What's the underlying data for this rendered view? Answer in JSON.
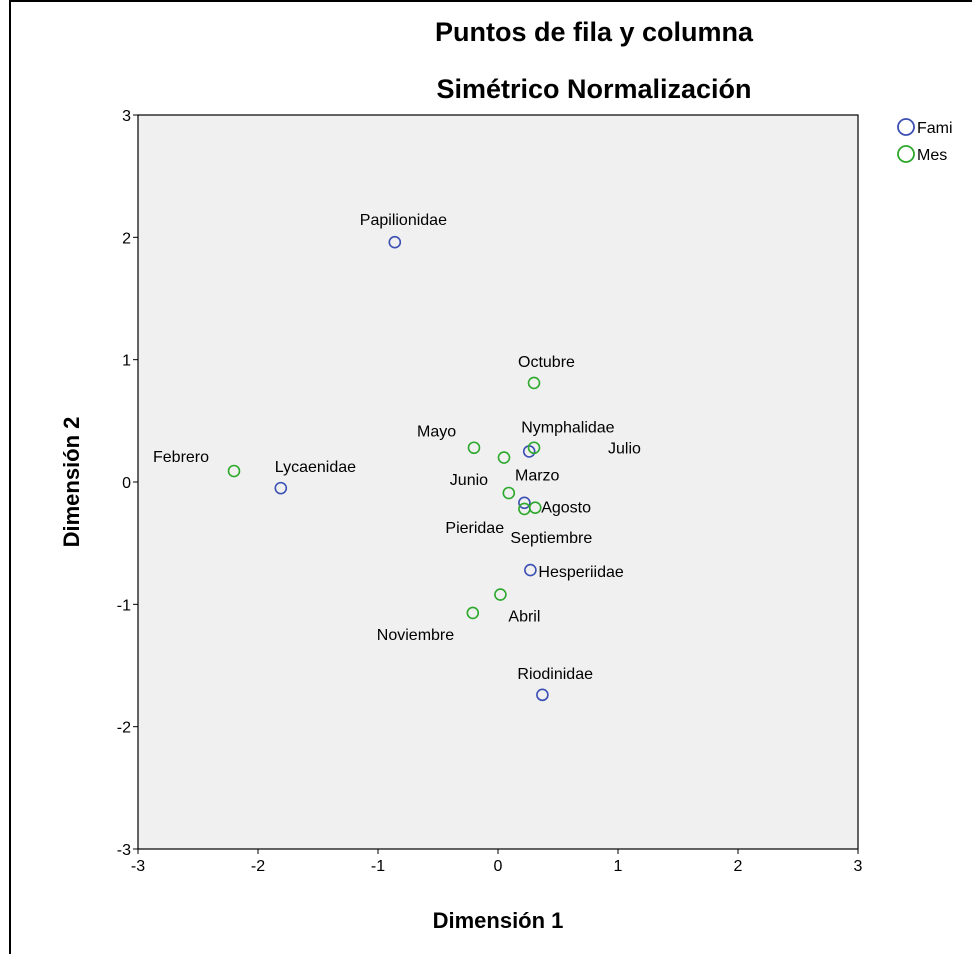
{
  "chart_data": {
    "type": "scatter",
    "title": "Puntos de fila y columna",
    "subtitle": "Simétrico Normalización",
    "xlabel": "Dimensión 1",
    "ylabel": "Dimensión 2",
    "xlim": [
      -3,
      3
    ],
    "ylim": [
      -3,
      3
    ],
    "xticks": [
      "-3",
      "-2",
      "-1",
      "0",
      "1",
      "2",
      "3"
    ],
    "yticks": [
      "3",
      "2",
      "1",
      "0",
      "-1",
      "-2",
      "-3"
    ],
    "grid": false,
    "legend_position": "top-right",
    "series": [
      {
        "name": "Fami",
        "color": "#3c50b4",
        "points": [
          {
            "label": "Papilionidae",
            "x": -0.86,
            "y": 1.96
          },
          {
            "label": "Lycaenidae",
            "x": -1.81,
            "y": -0.05
          },
          {
            "label": "Nymphalidae",
            "x": 0.26,
            "y": 0.25
          },
          {
            "label": "Pieridae",
            "x": 0.22,
            "y": -0.17
          },
          {
            "label": "Hesperiidae",
            "x": 0.27,
            "y": -0.72
          },
          {
            "label": "Riodinidae",
            "x": 0.37,
            "y": -1.74
          }
        ]
      },
      {
        "name": "Mes",
        "color": "#2ca82c",
        "points": [
          {
            "label": "Octubre",
            "x": 0.3,
            "y": 0.81
          },
          {
            "label": "Mayo",
            "x": -0.2,
            "y": 0.28
          },
          {
            "label": "Julio",
            "x": 0.3,
            "y": 0.28
          },
          {
            "label": "Marzo",
            "x": 0.05,
            "y": 0.2
          },
          {
            "label": "Febrero",
            "x": -2.2,
            "y": 0.09
          },
          {
            "label": "Junio",
            "x": 0.09,
            "y": -0.09
          },
          {
            "label": "Agosto",
            "x": 0.31,
            "y": -0.21
          },
          {
            "label": "Septiembre",
            "x": 0.22,
            "y": -0.22
          },
          {
            "label": "Abril",
            "x": 0.02,
            "y": -0.92
          },
          {
            "label": "Noviembre",
            "x": -0.21,
            "y": -1.07
          }
        ]
      }
    ]
  }
}
